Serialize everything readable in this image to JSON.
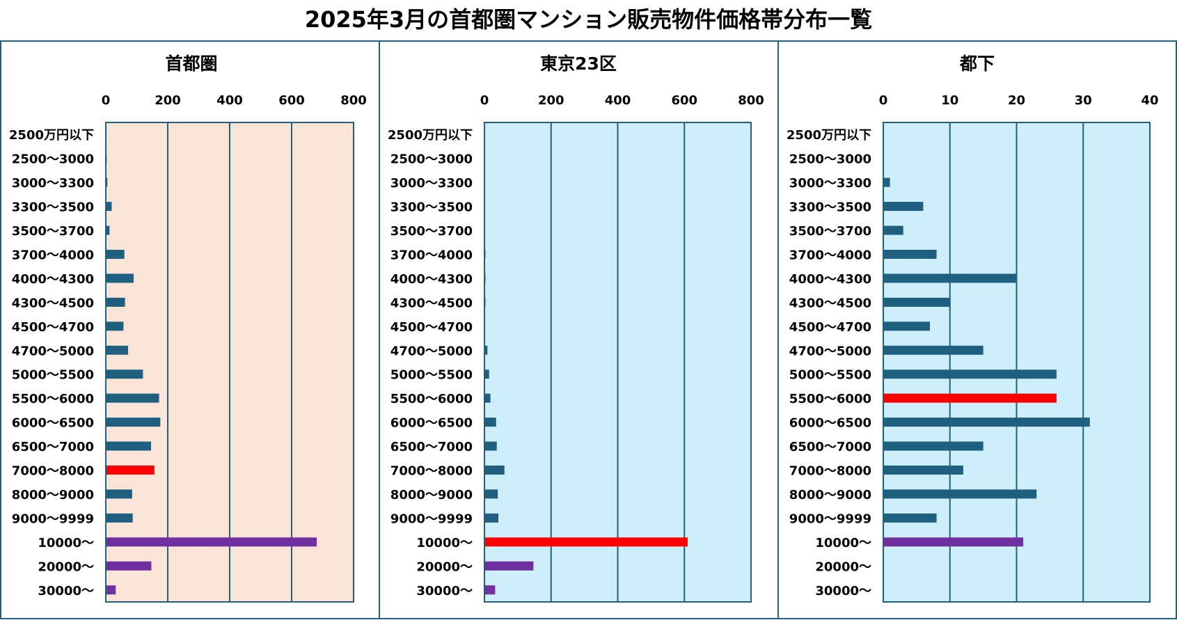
{
  "title": "2025年3月の首都圏マンション販売物件価格帯分布一覧",
  "colors": {
    "border": "#1f5f80",
    "bar": "#1f5f80",
    "highlight": "#ff0000",
    "premium": "#7030a0",
    "bg_shutoken": "#fbe3d6",
    "bg_tokyo23": "#cdeefa",
    "bg_tokashita": "#cdeefa"
  },
  "chart_data": [
    {
      "type": "bar",
      "orientation": "horizontal",
      "title": "首都圏",
      "background": "bg_shutoken",
      "xlim": [
        0,
        800
      ],
      "xticks": [
        "0",
        "200",
        "400",
        "600",
        "800"
      ],
      "grid": true,
      "categories": [
        "2500万円以下",
        "2500～3000",
        "3000～3300",
        "3300～3500",
        "3500～3700",
        "3700～4000",
        "4000～4300",
        "4300～4500",
        "4500～4700",
        "4700～5000",
        "5000～5500",
        "5500～6000",
        "6000～6500",
        "6500～7000",
        "7000～8000",
        "8000～9000",
        "9000～9999",
        "10000～",
        "20000～",
        "30000～"
      ],
      "values": [
        0,
        3,
        5,
        19,
        12,
        60,
        90,
        62,
        57,
        72,
        120,
        172,
        176,
        146,
        157,
        85,
        87,
        681,
        147,
        32
      ],
      "bar_colors": [
        "bar",
        "bar",
        "bar",
        "bar",
        "bar",
        "bar",
        "bar",
        "bar",
        "bar",
        "bar",
        "bar",
        "bar",
        "bar",
        "bar",
        "highlight",
        "bar",
        "bar",
        "premium",
        "premium",
        "premium"
      ]
    },
    {
      "type": "bar",
      "orientation": "horizontal",
      "title": "東京23区",
      "background": "bg_tokyo23",
      "xlim": [
        0,
        800
      ],
      "xticks": [
        "0",
        "200",
        "400",
        "600",
        "800"
      ],
      "grid": true,
      "categories": [
        "2500万円以下",
        "2500～3000",
        "3000～3300",
        "3300～3500",
        "3500～3700",
        "3700～4000",
        "4000～4300",
        "4300～4500",
        "4500～4700",
        "4700～5000",
        "5000～5500",
        "5500～6000",
        "6000～6500",
        "6500～7000",
        "7000～8000",
        "8000～9000",
        "9000～9999",
        "10000～",
        "20000～",
        "30000～"
      ],
      "values": [
        0,
        0,
        0,
        0,
        0,
        3,
        3,
        3,
        0,
        9,
        14,
        18,
        35,
        37,
        60,
        40,
        42,
        610,
        147,
        32
      ],
      "bar_colors": [
        "bar",
        "bar",
        "bar",
        "bar",
        "bar",
        "bar",
        "bar",
        "bar",
        "bar",
        "bar",
        "bar",
        "bar",
        "bar",
        "bar",
        "bar",
        "bar",
        "bar",
        "highlight",
        "premium",
        "premium"
      ]
    },
    {
      "type": "bar",
      "orientation": "horizontal",
      "title": "都下",
      "background": "bg_tokashita",
      "xlim": [
        0,
        40
      ],
      "xticks": [
        "0",
        "10",
        "20",
        "30",
        "40"
      ],
      "grid": true,
      "categories": [
        "2500万円以下",
        "2500～3000",
        "3000～3300",
        "3300～3500",
        "3500～3700",
        "3700～4000",
        "4000～4300",
        "4300～4500",
        "4500～4700",
        "4700～5000",
        "5000～5500",
        "5500～6000",
        "6000～6500",
        "6500～7000",
        "7000～8000",
        "8000～9000",
        "9000～9999",
        "10000～",
        "20000～",
        "30000～"
      ],
      "values": [
        0,
        0,
        1,
        6,
        3,
        8,
        20,
        10,
        7,
        15,
        26,
        26,
        31,
        15,
        12,
        23,
        8,
        21,
        0,
        0
      ],
      "bar_colors": [
        "bar",
        "bar",
        "bar",
        "bar",
        "bar",
        "bar",
        "bar",
        "bar",
        "bar",
        "bar",
        "bar",
        "highlight",
        "bar",
        "bar",
        "bar",
        "bar",
        "bar",
        "premium",
        "premium",
        "premium"
      ]
    }
  ]
}
